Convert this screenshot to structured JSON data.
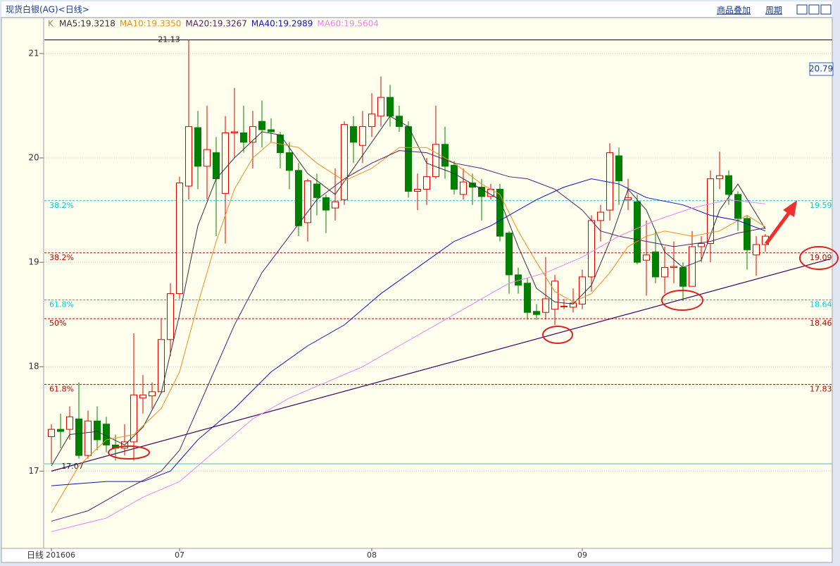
{
  "chart_data": {
    "type": "candlestick",
    "title": "现货白银(AG)<日线>",
    "toolbar": [
      "商品叠加",
      "周期"
    ],
    "period_label": "日线",
    "k_label": "K",
    "price_box": "20.79",
    "categories": [
      "201606",
      null,
      null,
      null,
      null,
      null,
      null,
      null,
      null,
      null,
      null,
      null,
      null,
      null,
      "07",
      null,
      null,
      null,
      null,
      null,
      null,
      null,
      null,
      null,
      null,
      null,
      null,
      null,
      null,
      null,
      null,
      null,
      null,
      null,
      null,
      "08",
      null,
      null,
      null,
      null,
      null,
      null,
      null,
      null,
      null,
      null,
      null,
      null,
      null,
      null,
      null,
      null,
      null,
      null,
      null,
      null,
      null,
      null,
      "09",
      null,
      null,
      null,
      null,
      null,
      null,
      null,
      null,
      null,
      null,
      null,
      null,
      null,
      null,
      null,
      null,
      null,
      null,
      null,
      null
    ],
    "open": [
      17.33,
      17.4,
      17.4,
      17.5,
      17.15,
      17.48,
      17.45,
      17.25,
      17.22,
      17.28,
      17.7,
      17.72,
      17.76,
      18.26,
      18.7,
      19.73,
      20.29,
      19.92,
      20.05,
      19.66,
      20.24,
      20.24,
      20.15,
      20.35,
      20.27,
      20.22,
      20.05,
      19.88,
      19.38,
      19.75,
      19.62,
      19.52,
      19.6,
      20.3,
      20.12,
      20.3,
      20.4,
      20.58,
      20.4,
      20.3,
      19.68,
      19.7,
      19.82,
      20.13,
      19.93,
      19.65,
      19.76,
      19.72,
      19.63,
      19.7,
      19.28,
      18.88,
      18.8,
      18.53,
      18.52,
      18.55,
      18.58,
      18.57,
      18.6,
      18.86,
      19.4,
      19.5,
      20.02,
      19.6,
      19.58,
      19.02,
      19.1,
      18.86,
      18.95,
      18.95,
      18.77,
      19.15,
      19.18,
      19.8,
      19.83,
      19.65,
      19.42,
      19.07,
      19.17
    ],
    "high": [
      17.45,
      17.55,
      17.62,
      17.85,
      17.58,
      17.62,
      17.52,
      17.35,
      17.45,
      18.32,
      17.92,
      17.85,
      18.46,
      18.8,
      19.82,
      21.13,
      20.45,
      20.5,
      20.2,
      20.4,
      20.67,
      20.5,
      20.45,
      20.55,
      20.38,
      20.25,
      20.15,
      19.95,
      19.8,
      19.85,
      19.65,
      19.9,
      20.35,
      20.4,
      20.45,
      20.62,
      20.78,
      20.7,
      20.5,
      20.35,
      19.85,
      20.0,
      20.5,
      20.3,
      19.97,
      19.9,
      19.85,
      19.8,
      19.75,
      19.75,
      19.3,
      18.95,
      18.85,
      18.6,
      19.05,
      18.88,
      18.65,
      18.75,
      18.93,
      19.45,
      19.55,
      20.14,
      20.1,
      19.8,
      19.65,
      19.4,
      19.3,
      19.15,
      19.2,
      19.0,
      19.3,
      19.25,
      19.88,
      20.06,
      19.88,
      19.68,
      19.45,
      19.25,
      19.27
    ],
    "low": [
      17.07,
      17.22,
      17.3,
      17.12,
      17.12,
      17.2,
      17.18,
      17.1,
      17.15,
      17.1,
      17.55,
      17.6,
      17.75,
      18.1,
      18.65,
      19.6,
      19.7,
      19.6,
      19.25,
      19.18,
      20.0,
      20.05,
      19.9,
      20.1,
      20.15,
      19.9,
      19.7,
      19.25,
      19.2,
      19.45,
      19.28,
      19.4,
      19.55,
      19.95,
      19.95,
      20.2,
      20.3,
      20.3,
      20.25,
      19.62,
      19.5,
      19.55,
      19.8,
      19.8,
      19.65,
      19.6,
      19.55,
      19.4,
      19.6,
      19.2,
      18.7,
      18.7,
      18.45,
      18.45,
      18.45,
      18.4,
      18.55,
      18.52,
      18.55,
      18.72,
      19.2,
      19.4,
      19.55,
      19.5,
      18.98,
      18.68,
      18.8,
      18.7,
      18.8,
      18.63,
      18.78,
      19.0,
      19.0,
      19.7,
      19.55,
      19.3,
      18.93,
      18.87,
      19.1
    ],
    "close": [
      17.4,
      17.38,
      17.52,
      17.15,
      17.48,
      17.3,
      17.25,
      17.22,
      17.28,
      17.73,
      17.73,
      17.76,
      18.26,
      18.7,
      19.76,
      20.3,
      19.92,
      20.08,
      19.8,
      20.24,
      20.25,
      20.15,
      20.3,
      20.27,
      20.25,
      20.05,
      19.88,
      19.35,
      19.78,
      19.62,
      19.5,
      19.58,
      20.32,
      20.15,
      20.3,
      20.42,
      20.58,
      20.4,
      20.3,
      19.68,
      19.7,
      19.82,
      20.13,
      19.92,
      19.7,
      19.77,
      19.72,
      19.63,
      19.7,
      19.25,
      18.88,
      18.78,
      18.52,
      18.5,
      18.65,
      18.82,
      18.58,
      18.61,
      18.86,
      19.4,
      19.48,
      20.05,
      19.78,
      19.62,
      19.0,
      19.07,
      18.86,
      18.95,
      18.96,
      18.77,
      19.15,
      19.18,
      19.8,
      19.83,
      19.65,
      19.42,
      19.12,
      19.17,
      19.25
    ],
    "up_color": "#e00000",
    "down_color": "#008000",
    "ma": [
      {
        "label": "MA5:19.3218",
        "color": "#303040",
        "x": [
          0,
          2,
          5,
          8,
          10,
          12,
          14,
          16,
          18,
          20,
          23,
          25,
          28,
          31,
          33,
          35,
          37,
          39,
          41,
          44,
          47,
          49,
          51,
          53,
          55,
          57,
          59,
          61,
          63,
          65,
          67,
          69,
          71,
          73,
          75,
          78
        ],
        "values": [
          17.05,
          17.35,
          17.38,
          17.25,
          17.42,
          17.75,
          18.5,
          19.35,
          19.8,
          20.0,
          20.25,
          20.22,
          19.85,
          19.65,
          19.9,
          20.15,
          20.4,
          20.3,
          19.95,
          19.85,
          19.7,
          19.6,
          19.15,
          18.75,
          18.62,
          18.6,
          18.78,
          19.2,
          19.7,
          19.5,
          19.1,
          18.95,
          19.02,
          19.5,
          19.75,
          19.32
        ]
      },
      {
        "label": "MA10:19.3350",
        "color": "#f08c1e",
        "x": [
          0,
          3,
          6,
          9,
          12,
          14,
          16,
          18,
          20,
          22,
          24,
          27,
          29,
          32,
          35,
          38,
          41,
          44,
          47,
          49,
          51,
          53,
          55,
          57,
          59,
          61,
          63,
          65,
          67,
          70,
          73,
          76,
          78
        ],
        "values": [
          16.6,
          17.05,
          17.3,
          17.35,
          17.6,
          17.95,
          18.6,
          19.2,
          19.7,
          20.0,
          20.15,
          20.1,
          19.95,
          19.78,
          19.9,
          20.1,
          20.1,
          19.95,
          19.75,
          19.65,
          19.3,
          19.0,
          18.72,
          18.62,
          18.7,
          18.9,
          19.15,
          19.25,
          19.3,
          19.25,
          19.3,
          19.45,
          19.34
        ]
      },
      {
        "label": "MA20:19.3267",
        "color": "#5a1a6e",
        "x": [
          0,
          4,
          8,
          12,
          14,
          17,
          20,
          23,
          26,
          29,
          32,
          35,
          38,
          41,
          44,
          47,
          50,
          52,
          55,
          58,
          60,
          62,
          65,
          68,
          72,
          75,
          78
        ],
        "values": [
          16.52,
          16.62,
          16.82,
          17.0,
          17.2,
          17.8,
          18.4,
          18.9,
          19.25,
          19.6,
          19.8,
          19.95,
          20.07,
          20.05,
          19.95,
          19.9,
          19.82,
          19.8,
          19.7,
          19.5,
          19.3,
          19.25,
          19.2,
          19.15,
          19.2,
          19.28,
          19.33
        ]
      },
      {
        "label": "MA40:19.2989",
        "color": "#1010c0",
        "x": [
          0,
          6,
          10,
          13,
          16,
          20,
          24,
          28,
          32,
          36,
          40,
          44,
          48,
          50,
          53,
          56,
          59,
          62,
          65,
          69,
          72,
          75,
          78
        ],
        "values": [
          16.86,
          16.9,
          16.9,
          17.0,
          17.3,
          17.6,
          17.95,
          18.2,
          18.4,
          18.7,
          18.95,
          19.2,
          19.35,
          19.45,
          19.6,
          19.72,
          19.8,
          19.75,
          19.62,
          19.55,
          19.45,
          19.4,
          19.3
        ]
      },
      {
        "label": "MA60:19.5604",
        "color": "#ee82ee",
        "x": [
          0,
          6,
          10,
          14,
          18,
          22,
          26,
          30,
          34,
          38,
          42,
          46,
          50,
          54,
          58,
          62,
          66,
          70,
          74,
          78
        ],
        "values": [
          16.42,
          16.55,
          16.75,
          16.9,
          17.2,
          17.5,
          17.7,
          17.85,
          18.0,
          18.2,
          18.4,
          18.6,
          18.8,
          18.9,
          19.05,
          19.25,
          19.4,
          19.52,
          19.6,
          19.56
        ]
      }
    ],
    "fib": [
      {
        "label": "38.2%",
        "value": 19.59,
        "color": "#00c8d8"
      },
      {
        "label": "38.2%",
        "value": 19.09,
        "color": "#c00000"
      },
      {
        "label": "61.8%",
        "value": 18.64,
        "color": "#00c8d8"
      },
      {
        "label": "50%",
        "value": 18.46,
        "color": "#c00000"
      },
      {
        "label": "61.8%",
        "value": 17.83,
        "color": "#c00000"
      }
    ],
    "extremes": [
      {
        "value": 21.13,
        "color": "#000000",
        "index": 15
      },
      {
        "value": 17.07,
        "color": "#40c0d0",
        "index": 0
      }
    ],
    "trendline": {
      "x": [
        0,
        85
      ],
      "values": [
        17.0,
        19.03
      ],
      "color": "#400060"
    },
    "ylim": [
      16.28,
      21.31
    ],
    "yticks": [
      17,
      18,
      19,
      20,
      21
    ]
  }
}
